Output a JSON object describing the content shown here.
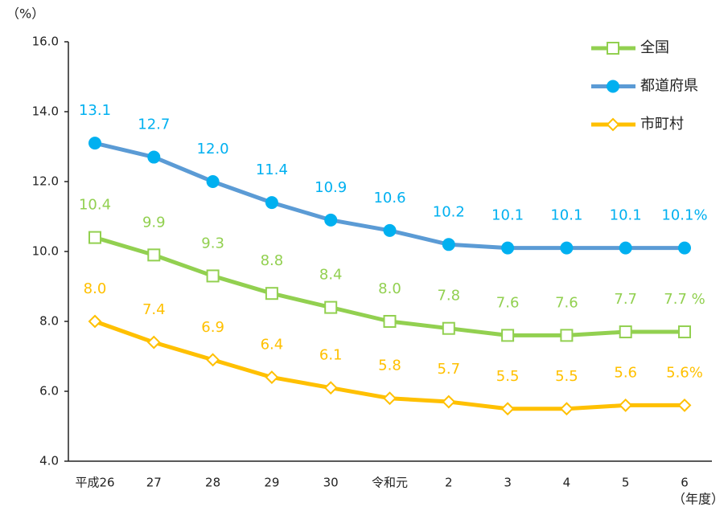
{
  "chart_data": {
    "type": "line",
    "y_label": "（%）",
    "x_label": "（年度）",
    "categories": [
      "平成26",
      "27",
      "28",
      "29",
      "30",
      "令和元",
      "2",
      "3",
      "4",
      "5",
      "6"
    ],
    "series": [
      {
        "name": "全国",
        "color": "#92d050",
        "label_color": "#92d050",
        "marker": "square",
        "marker_fill": "#ffffff",
        "values": [
          10.4,
          9.9,
          9.3,
          8.8,
          8.4,
          8.0,
          7.8,
          7.6,
          7.6,
          7.7,
          7.7
        ],
        "value_labels": [
          "10.4",
          "9.9",
          "9.3",
          "8.8",
          "8.4",
          "8.0",
          "7.8",
          "7.6",
          "7.6",
          "7.7",
          "7.7 %"
        ]
      },
      {
        "name": "都道府県",
        "color": "#5b9bd5",
        "label_color": "#00b0f0",
        "marker": "circle",
        "marker_fill": "#00b0f0",
        "values": [
          13.1,
          12.7,
          12.0,
          11.4,
          10.9,
          10.6,
          10.2,
          10.1,
          10.1,
          10.1,
          10.1
        ],
        "value_labels": [
          "13.1",
          "12.7",
          "12.0",
          "11.4",
          "10.9",
          "10.6",
          "10.2",
          "10.1",
          "10.1",
          "10.1",
          "10.1%"
        ]
      },
      {
        "name": "市町村",
        "color": "#ffc000",
        "label_color": "#ffc000",
        "marker": "diamond",
        "marker_fill": "#ffffff",
        "values": [
          8.0,
          7.4,
          6.9,
          6.4,
          6.1,
          5.8,
          5.7,
          5.5,
          5.5,
          5.6,
          5.6
        ],
        "value_labels": [
          "8.0",
          "7.4",
          "6.9",
          "6.4",
          "6.1",
          "5.8",
          "5.7",
          "5.5",
          "5.5",
          "5.6",
          "5.6%"
        ]
      }
    ],
    "ylim": [
      4,
      16
    ],
    "yticks": [
      {
        "value": 4,
        "label": "4.0"
      },
      {
        "value": 6,
        "label": "6.0"
      },
      {
        "value": 8,
        "label": "8.0"
      },
      {
        "value": 10,
        "label": "10.0"
      },
      {
        "value": 12,
        "label": "12.0"
      },
      {
        "value": 14,
        "label": "14.0"
      },
      {
        "value": 16,
        "label": "16.0"
      }
    ],
    "legend": "top-right"
  }
}
